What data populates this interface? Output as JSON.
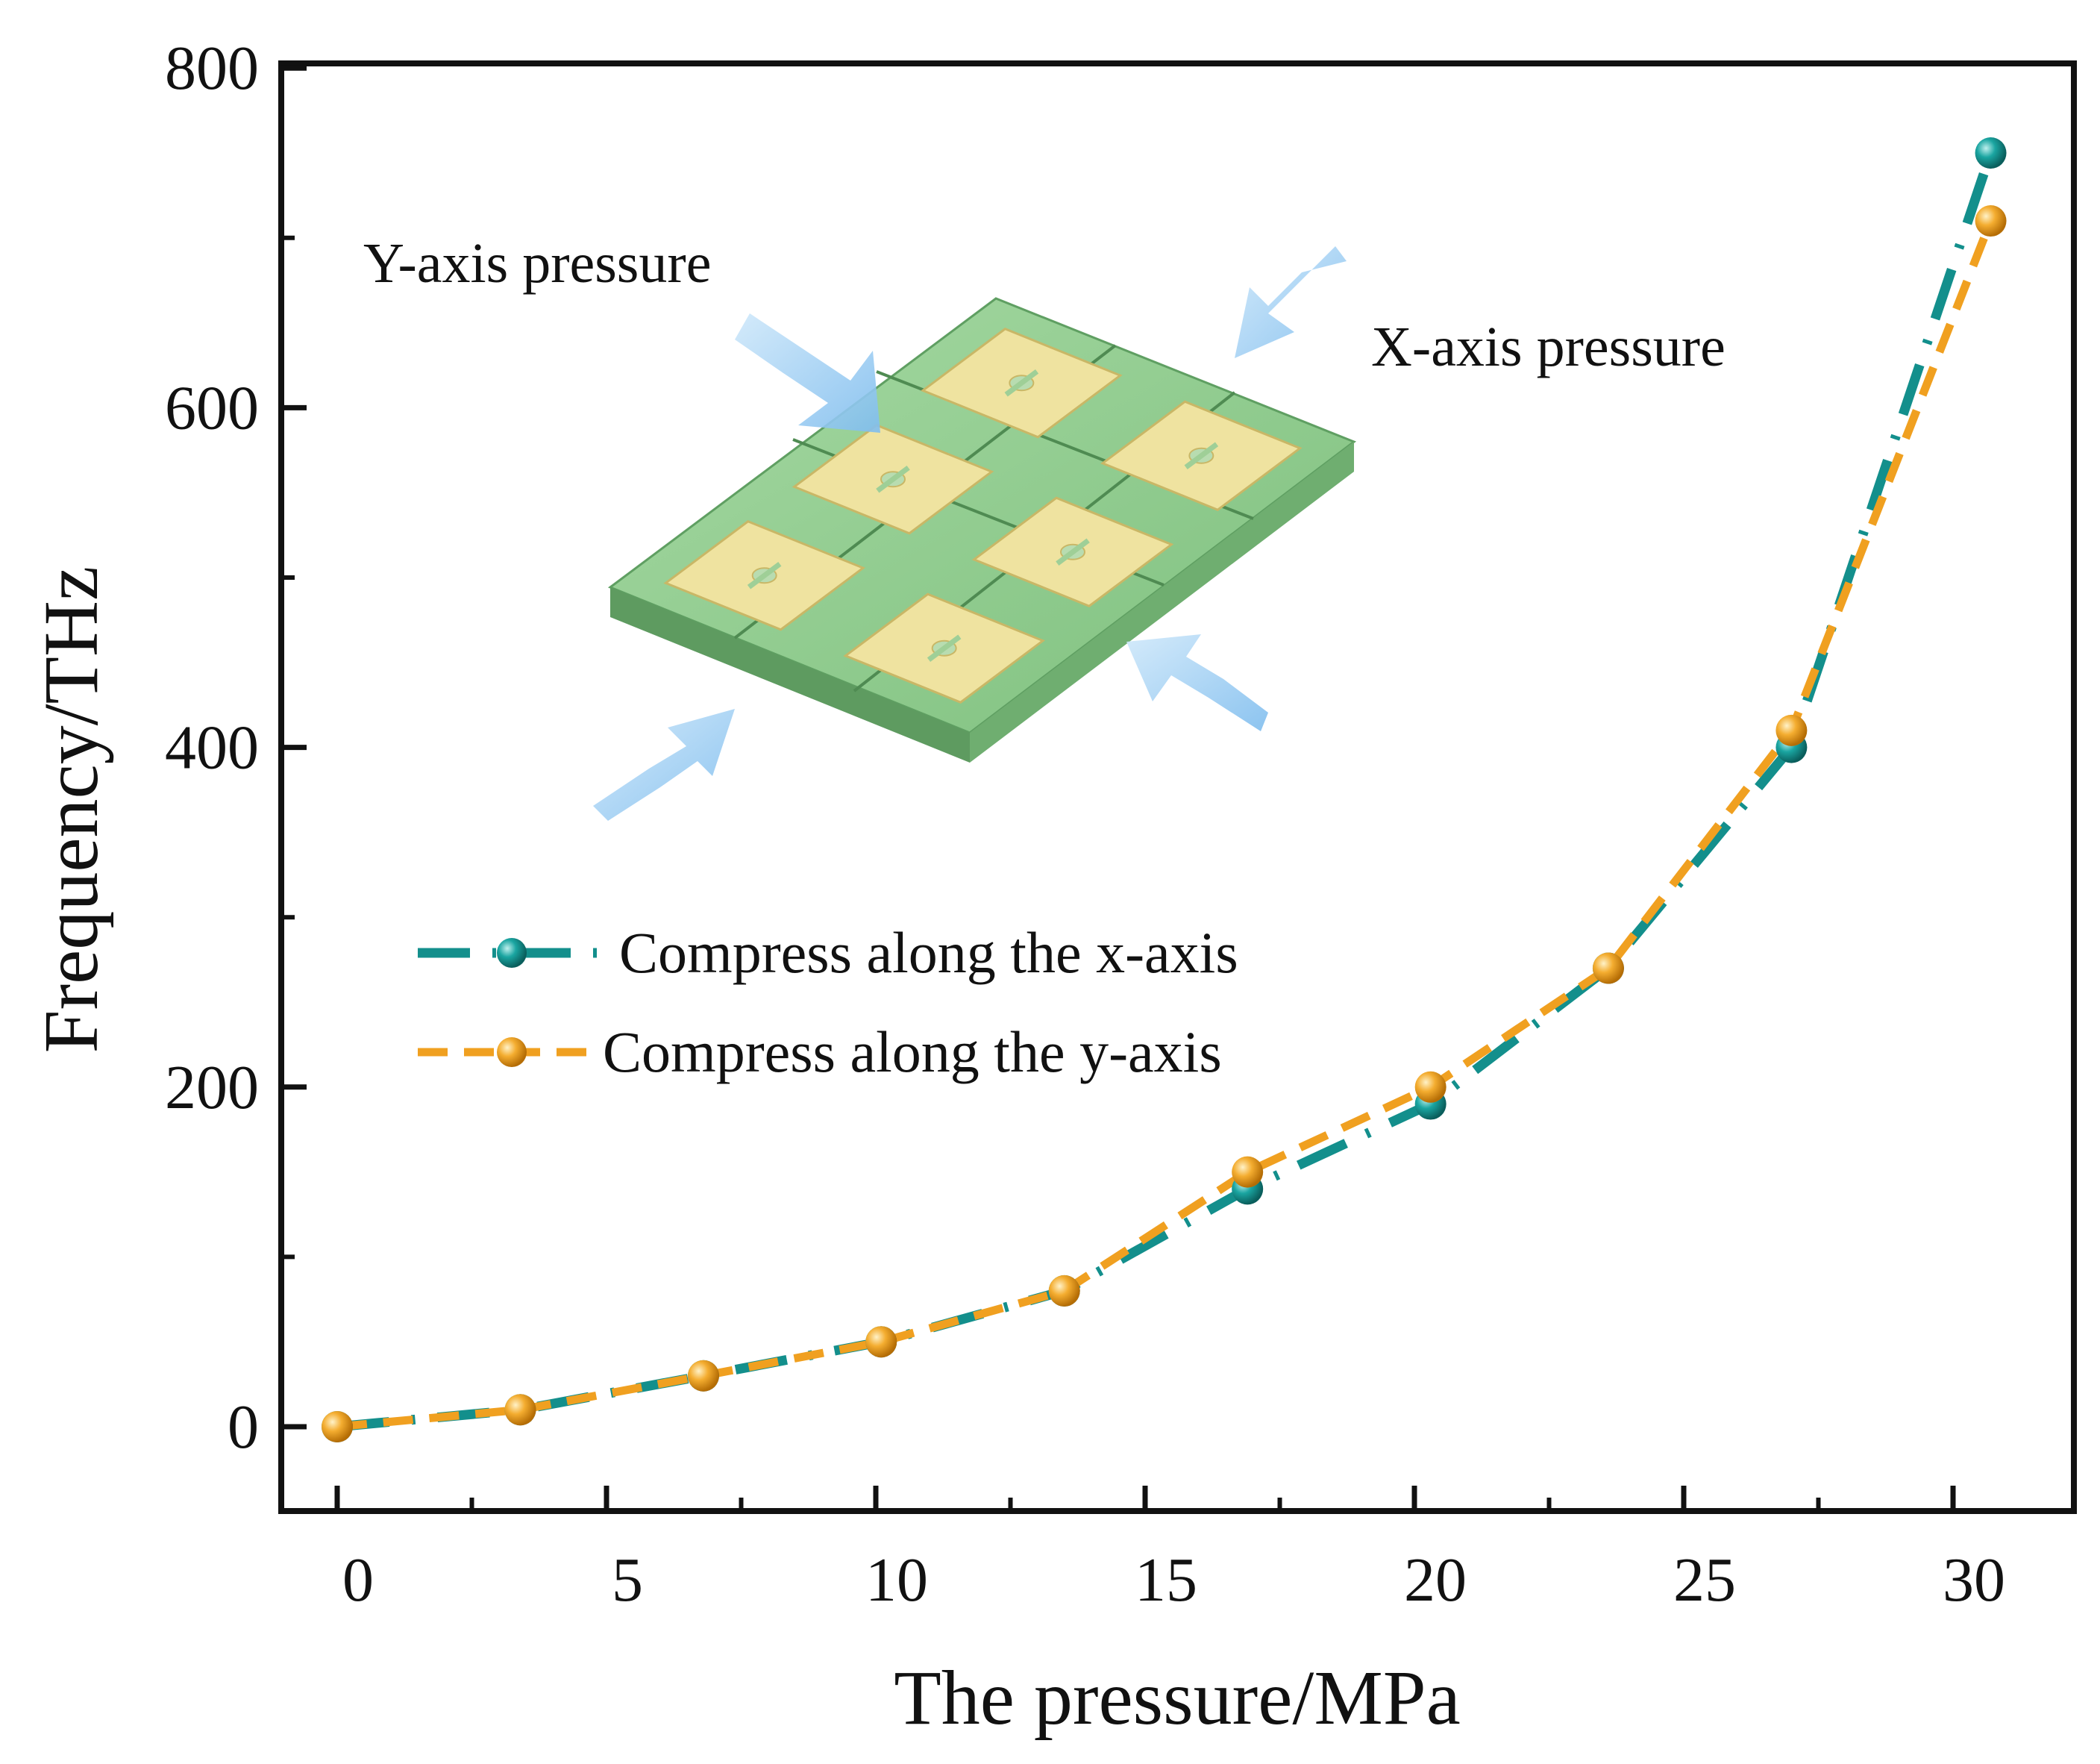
{
  "chart_data": {
    "type": "line",
    "title": "",
    "xlabel": "The pressure/MPa",
    "ylabel": "Frequency/THz",
    "xlim": [
      -1,
      32
    ],
    "ylim": [
      -50,
      800
    ],
    "x_ticks": [
      0,
      5,
      10,
      15,
      20,
      25,
      30
    ],
    "y_ticks": [
      0,
      200,
      400,
      600,
      800
    ],
    "x_tick_labels": [
      "0",
      "5",
      "10",
      "15",
      "20",
      "25",
      "30"
    ],
    "y_tick_labels": [
      "0",
      "200",
      "400",
      "600",
      "800"
    ],
    "legend_position": "center-left",
    "series": [
      {
        "name": "Compress along the x-axis",
        "color": "#138f8c",
        "line_style": "dash-dot",
        "x": [
          0,
          3.4,
          6.8,
          10.1,
          13.5,
          16.9,
          20.3,
          23.6,
          27.0,
          30.7
        ],
        "values": [
          0,
          10,
          30,
          50,
          80,
          140,
          190,
          270,
          400,
          750
        ]
      },
      {
        "name": "Compress along the y-axis",
        "color": "#f0a020",
        "line_style": "dashed",
        "x": [
          0,
          3.4,
          6.8,
          10.1,
          13.5,
          16.9,
          20.3,
          23.6,
          27.0,
          30.7
        ],
        "values": [
          0,
          10,
          30,
          50,
          80,
          150,
          200,
          270,
          410,
          710
        ]
      }
    ],
    "annotations": [
      "Y-axis pressure",
      "X-axis pressure"
    ]
  },
  "colors": {
    "x_series": "#138f8c",
    "y_series": "#f0a020",
    "substrate": "#86c98a",
    "pattern": "#efe3a0",
    "arrow": "#8ec8ef"
  }
}
